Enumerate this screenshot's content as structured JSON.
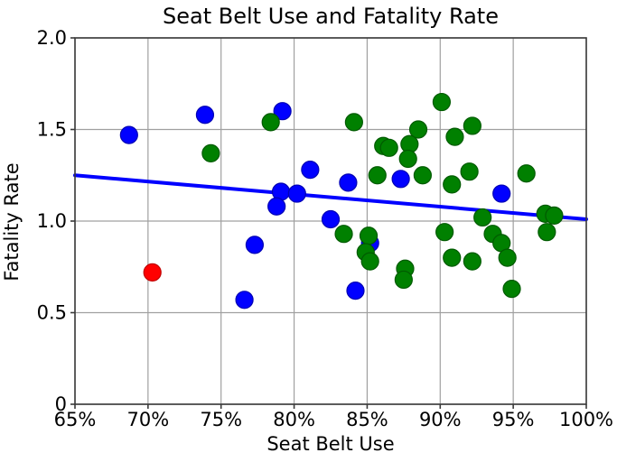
{
  "chart_data": {
    "type": "scatter",
    "title": "Seat Belt Use and Fatality Rate",
    "xlabel": "Seat Belt Use",
    "ylabel": "Fatality Rate",
    "xlim": [
      65,
      100
    ],
    "ylim": [
      0,
      2.0
    ],
    "grid": true,
    "x_ticks": [
      {
        "value": 65,
        "label": "65%"
      },
      {
        "value": 70,
        "label": "70%"
      },
      {
        "value": 75,
        "label": "75%"
      },
      {
        "value": 80,
        "label": "80%"
      },
      {
        "value": 85,
        "label": "85%"
      },
      {
        "value": 90,
        "label": "90%"
      },
      {
        "value": 95,
        "label": "95%"
      },
      {
        "value": 100,
        "label": "100%"
      }
    ],
    "y_ticks": [
      {
        "value": 0,
        "label": "0"
      },
      {
        "value": 0.5,
        "label": "0.5"
      },
      {
        "value": 1.0,
        "label": "1.0"
      },
      {
        "value": 1.5,
        "label": "1.5"
      },
      {
        "value": 2.0,
        "label": "2.0"
      }
    ],
    "colors": {
      "blue": "#0000ff",
      "green": "#008000",
      "red": "#ff0000",
      "blue_edge": "#0000b4",
      "green_edge": "#005a00",
      "red_edge": "#c00000",
      "trend": "#0000ff",
      "grid": "#a0a0a0",
      "border": "#3a3a3a",
      "text": "#000000"
    },
    "series": [
      {
        "name": "blue-points",
        "color": "blue",
        "points": [
          [
            68.7,
            1.47
          ],
          [
            73.9,
            1.58
          ],
          [
            79.2,
            1.6
          ],
          [
            81.1,
            1.28
          ],
          [
            79.1,
            1.16
          ],
          [
            80.2,
            1.15
          ],
          [
            78.8,
            1.08
          ],
          [
            82.5,
            1.01
          ],
          [
            83.7,
            1.21
          ],
          [
            87.3,
            1.23
          ],
          [
            94.2,
            1.15
          ],
          [
            77.3,
            0.87
          ],
          [
            85.2,
            0.88
          ],
          [
            84.2,
            0.62
          ],
          [
            76.6,
            0.57
          ]
        ]
      },
      {
        "name": "green-points",
        "color": "green",
        "points": [
          [
            74.3,
            1.37
          ],
          [
            78.4,
            1.54
          ],
          [
            84.1,
            1.54
          ],
          [
            86.1,
            1.41
          ],
          [
            86.5,
            1.4
          ],
          [
            87.9,
            1.42
          ],
          [
            87.8,
            1.34
          ],
          [
            88.5,
            1.5
          ],
          [
            90.1,
            1.65
          ],
          [
            91.0,
            1.46
          ],
          [
            92.2,
            1.52
          ],
          [
            85.7,
            1.25
          ],
          [
            88.8,
            1.25
          ],
          [
            90.8,
            1.2
          ],
          [
            92.0,
            1.27
          ],
          [
            95.9,
            1.26
          ],
          [
            83.4,
            0.93
          ],
          [
            85.1,
            0.92
          ],
          [
            84.9,
            0.83
          ],
          [
            85.2,
            0.78
          ],
          [
            87.6,
            0.74
          ],
          [
            87.5,
            0.68
          ],
          [
            90.3,
            0.94
          ],
          [
            90.8,
            0.8
          ],
          [
            92.2,
            0.78
          ],
          [
            92.9,
            1.02
          ],
          [
            93.6,
            0.93
          ],
          [
            94.2,
            0.88
          ],
          [
            94.6,
            0.8
          ],
          [
            94.9,
            0.63
          ],
          [
            97.2,
            1.04
          ],
          [
            97.8,
            1.03
          ],
          [
            97.3,
            0.94
          ]
        ]
      },
      {
        "name": "red-points",
        "color": "red",
        "points": [
          [
            70.3,
            0.72
          ]
        ]
      }
    ],
    "trend_line": {
      "x": [
        65,
        100
      ],
      "y": [
        1.25,
        1.01
      ]
    },
    "marker_radius": 9.5
  }
}
